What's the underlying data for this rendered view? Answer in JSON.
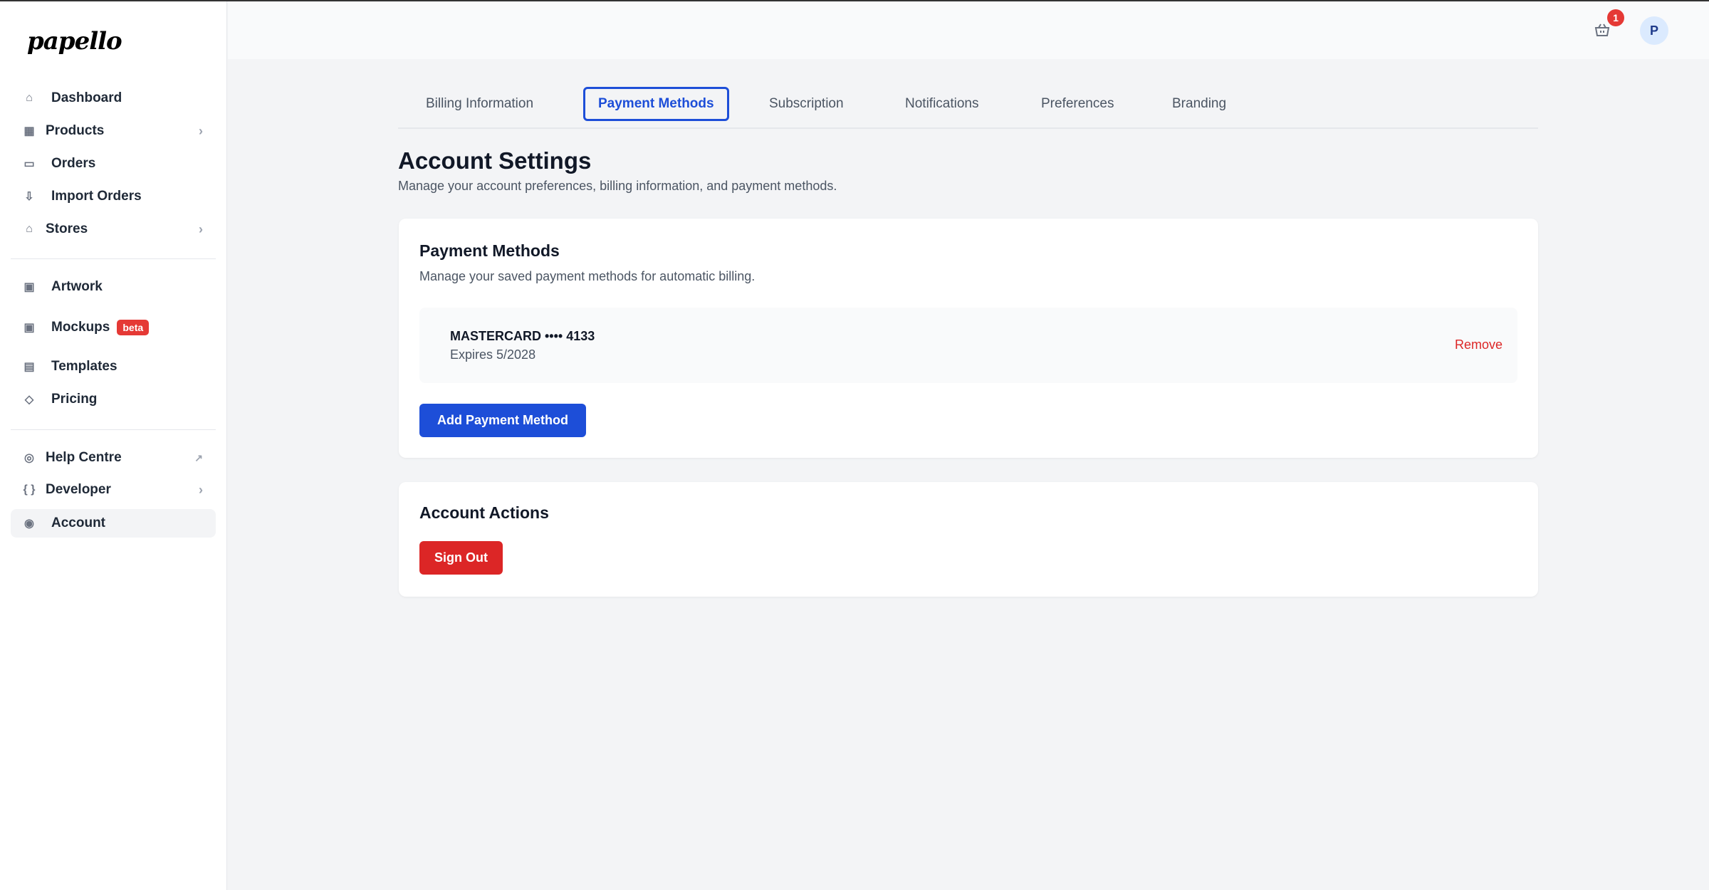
{
  "brand": {
    "logo": "papello"
  },
  "sidebar": {
    "items": [
      {
        "label": "Dashboard",
        "icon": "home-icon"
      },
      {
        "label": "Products",
        "icon": "grid-icon"
      },
      {
        "label": "Orders",
        "icon": "inbox-icon"
      },
      {
        "label": "Import Orders",
        "icon": "import-icon"
      },
      {
        "label": "Stores",
        "icon": "store-icon"
      },
      {
        "label": "Artwork",
        "icon": "image-icon"
      },
      {
        "label": "Mockups",
        "icon": "images-icon",
        "badge": "beta"
      },
      {
        "label": "Templates",
        "icon": "layout-icon"
      },
      {
        "label": "Pricing",
        "icon": "tag-icon"
      },
      {
        "label": "Help Centre",
        "icon": "lifebuoy-icon"
      },
      {
        "label": "Developer",
        "icon": "braces-icon"
      },
      {
        "label": "Account",
        "icon": "user-circle-icon",
        "active": true
      }
    ]
  },
  "header": {
    "cart_count": "1",
    "avatar_initial": "P"
  },
  "tabs": [
    "Billing Information",
    "Payment Methods",
    "Subscription",
    "Notifications",
    "Preferences",
    "Branding"
  ],
  "active_tab": "Payment Methods",
  "page": {
    "title": "Account Settings",
    "subtitle": "Manage your account preferences, billing information, and payment methods."
  },
  "payment": {
    "title": "Payment Methods",
    "subtitle": "Manage your saved payment methods for automatic billing.",
    "card": {
      "name": "MASTERCARD •••• 4133",
      "expires": "Expires 5/2028",
      "remove": "Remove"
    },
    "add_label": "Add Payment Method"
  },
  "actions": {
    "title": "Account Actions",
    "sign_out": "Sign Out"
  },
  "colors": {
    "primary": "#1d4ed8",
    "danger": "#dc2626",
    "badge": "#e53935"
  }
}
